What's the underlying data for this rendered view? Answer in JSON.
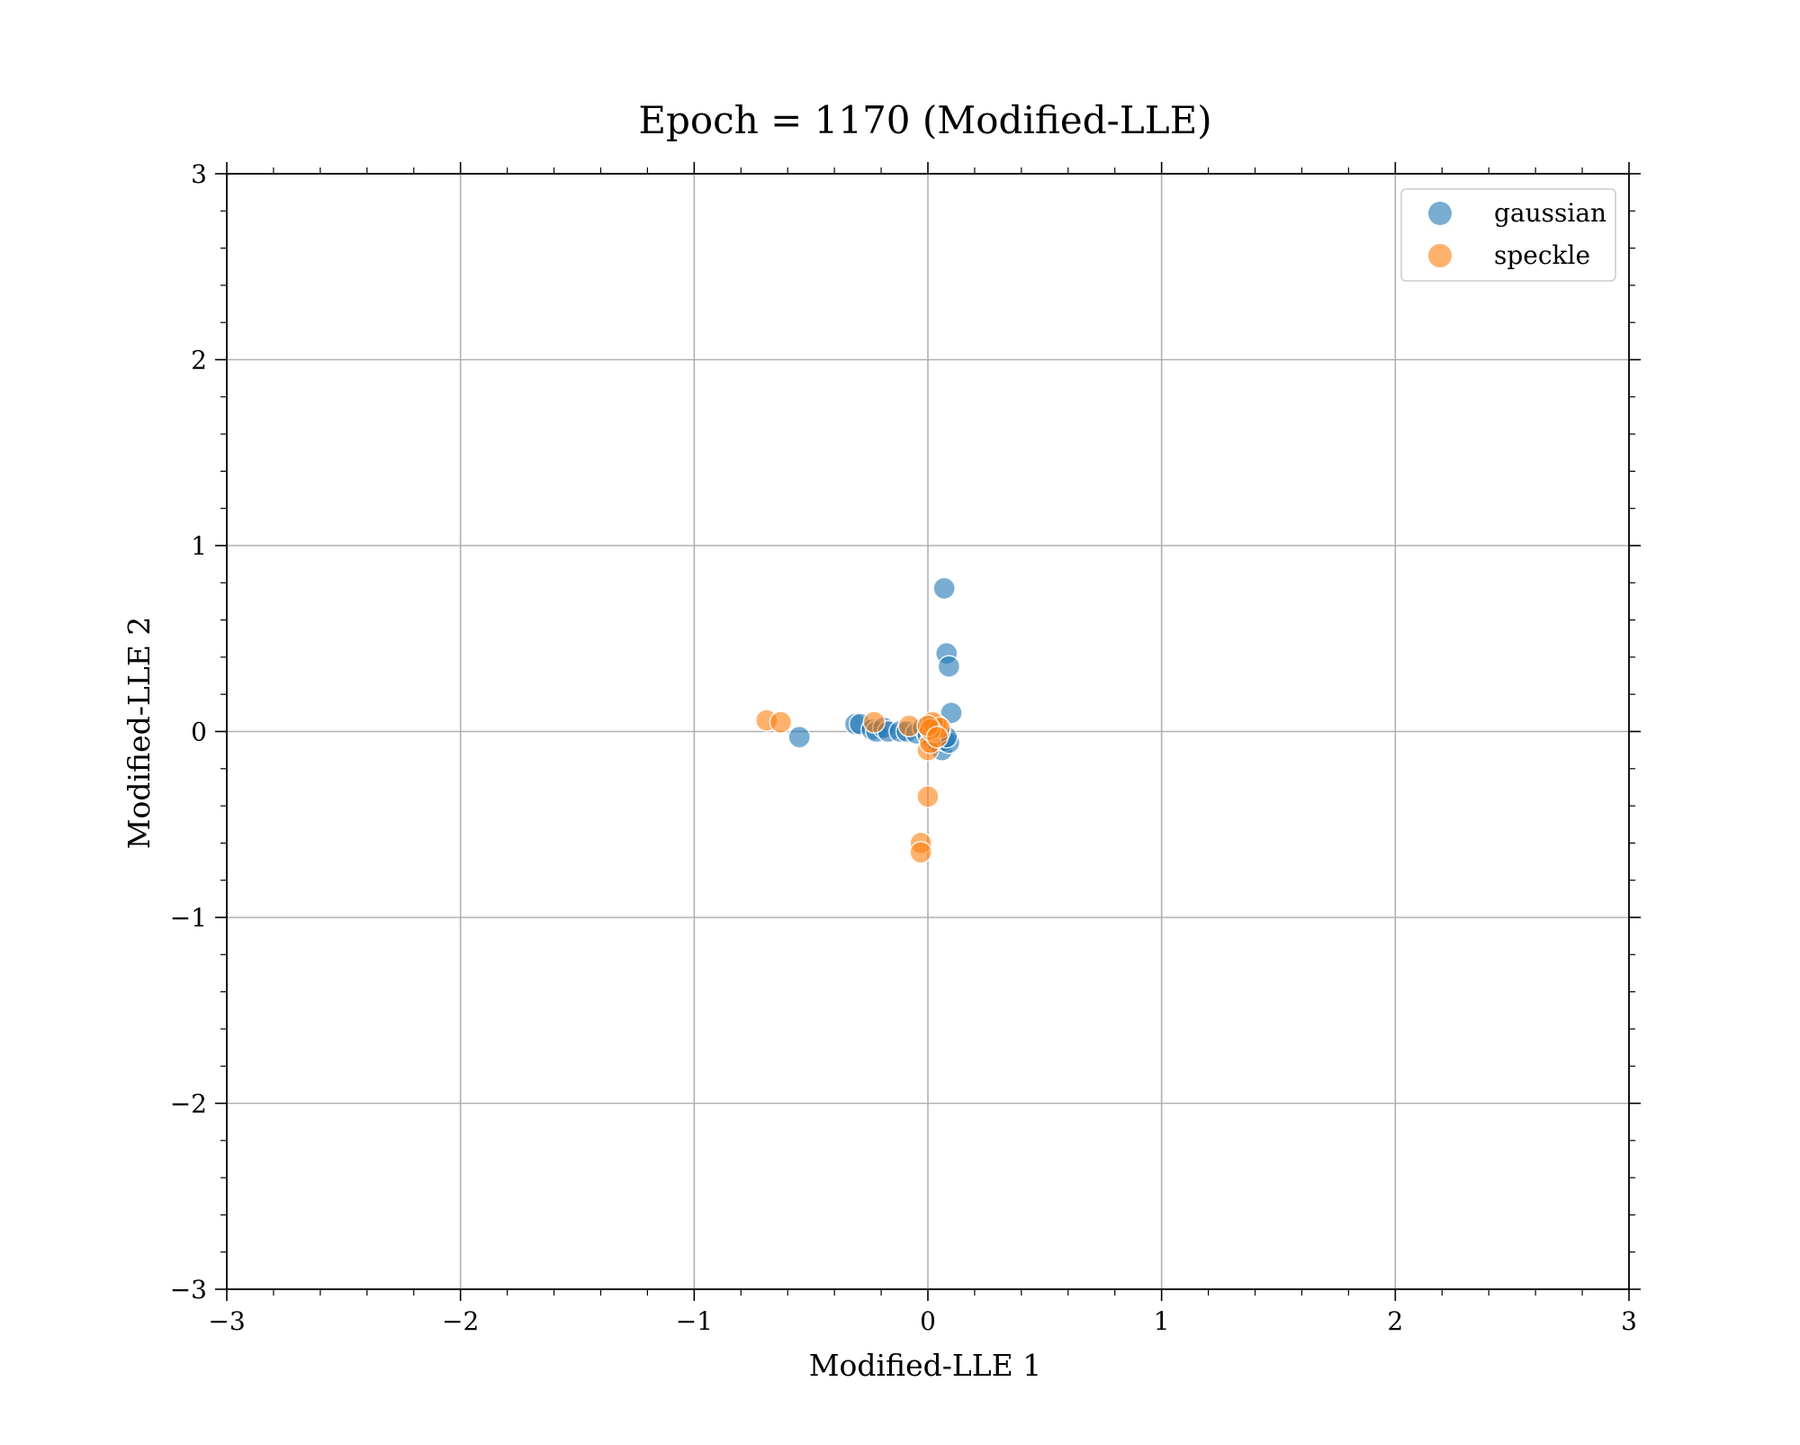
{
  "chart_data": {
    "type": "scatter",
    "title": "Epoch = 1170 (Modified-LLE)",
    "xlabel": "Modified-LLE 1",
    "ylabel": "Modified-LLE 2",
    "xlim": [
      -3,
      3
    ],
    "ylim": [
      -3,
      3
    ],
    "xticks": [
      -3,
      -2,
      -1,
      0,
      1,
      2,
      3
    ],
    "yticks": [
      -3,
      -2,
      -1,
      0,
      1,
      2,
      3
    ],
    "xtick_labels": [
      "−3",
      "−2",
      "−1",
      "0",
      "1",
      "2",
      "3"
    ],
    "ytick_labels": [
      "−3",
      "−2",
      "−1",
      "0",
      "1",
      "2",
      "3"
    ],
    "grid": true,
    "legend_position": "top-right",
    "series": [
      {
        "name": "gaussian",
        "color": "#1f77b4",
        "points": [
          [
            -0.55,
            -0.03
          ],
          [
            -0.31,
            0.04
          ],
          [
            -0.29,
            0.04
          ],
          [
            -0.24,
            0.01
          ],
          [
            -0.22,
            0.0
          ],
          [
            -0.19,
            0.02
          ],
          [
            -0.17,
            0.0
          ],
          [
            -0.12,
            0.0
          ],
          [
            -0.09,
            0.0
          ],
          [
            -0.05,
            -0.01
          ],
          [
            -0.02,
            0.02
          ],
          [
            0.0,
            -0.02
          ],
          [
            0.02,
            -0.04
          ],
          [
            0.04,
            -0.06
          ],
          [
            0.06,
            -0.1
          ],
          [
            0.07,
            -0.05
          ],
          [
            0.09,
            -0.06
          ],
          [
            0.08,
            -0.03
          ],
          [
            0.05,
            0.0
          ],
          [
            0.03,
            0.02
          ],
          [
            0.1,
            0.1
          ],
          [
            0.07,
            0.77
          ],
          [
            0.08,
            0.42
          ],
          [
            0.09,
            0.35
          ]
        ]
      },
      {
        "name": "speckle",
        "color": "#ff7f0e",
        "points": [
          [
            -0.69,
            0.06
          ],
          [
            -0.63,
            0.05
          ],
          [
            -0.23,
            0.05
          ],
          [
            -0.08,
            0.03
          ],
          [
            0.0,
            -0.1
          ],
          [
            0.01,
            -0.06
          ],
          [
            0.02,
            0.0
          ],
          [
            0.03,
            0.02
          ],
          [
            0.03,
            0.04
          ],
          [
            0.04,
            0.03
          ],
          [
            0.02,
            0.05
          ],
          [
            0.05,
            0.02
          ],
          [
            0.01,
            0.01
          ],
          [
            0.0,
            0.03
          ],
          [
            0.04,
            -0.03
          ],
          [
            0.0,
            -0.35
          ],
          [
            -0.03,
            -0.6
          ],
          [
            -0.03,
            -0.65
          ]
        ]
      }
    ]
  }
}
